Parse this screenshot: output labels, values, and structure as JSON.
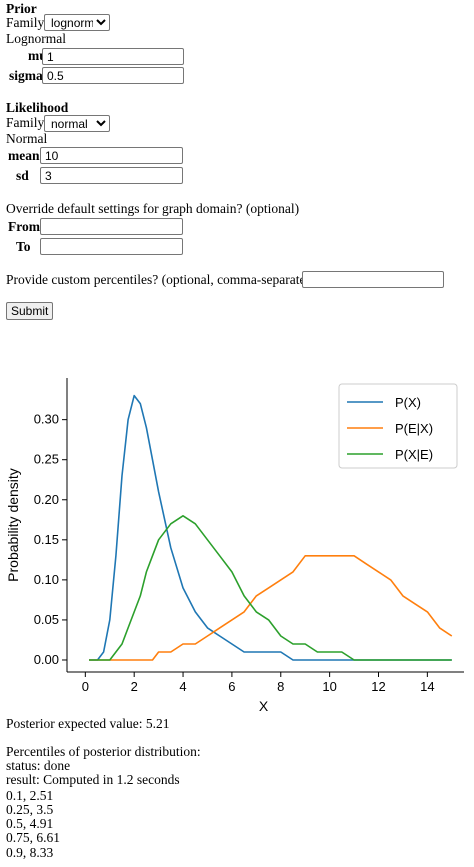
{
  "prior": {
    "heading": "Prior",
    "family_label": "Family",
    "family_value": "lognormal",
    "dist_name": "Lognormal",
    "param1_label": "mu",
    "param1_value": "1",
    "param2_label": "sigma",
    "param2_value": "0.5"
  },
  "likelihood": {
    "heading": "Likelihood",
    "family_label": "Family",
    "family_value": "normal",
    "dist_name": "Normal",
    "param1_label": "mean",
    "param1_value": "10",
    "param2_label": "sd",
    "param2_value": "3"
  },
  "domain": {
    "prompt": "Override default settings for graph domain? (optional)",
    "from_label": "From",
    "from_value": "",
    "to_label": "To",
    "to_value": ""
  },
  "percentiles_input": {
    "prompt": "Provide custom percentiles? (optional, comma-separated)",
    "value": ""
  },
  "submit_label": "Submit",
  "chart_data": {
    "type": "line",
    "xlabel": "X",
    "ylabel": "Probability density",
    "xlim": [
      -0.75,
      15.5
    ],
    "ylim": [
      -0.015,
      0.352
    ],
    "x_ticks": [
      "0",
      "2",
      "4",
      "6",
      "8",
      "10",
      "12",
      "14"
    ],
    "y_ticks": [
      "0.00",
      "0.05",
      "0.10",
      "0.15",
      "0.20",
      "0.25",
      "0.30"
    ],
    "legend_position": "top-right",
    "grid": false,
    "x": [
      0.15,
      0.3,
      0.5,
      0.75,
      1,
      1.25,
      1.5,
      1.75,
      2,
      2.25,
      2.5,
      2.75,
      3,
      3.5,
      4,
      4.5,
      5,
      5.5,
      6,
      6.5,
      7,
      7.5,
      8,
      8.5,
      9,
      9.5,
      10,
      10.5,
      11,
      11.5,
      12,
      12.5,
      13,
      13.5,
      14,
      14.5,
      15
    ],
    "series": [
      {
        "name": "P(X)",
        "color": "#1f77b4",
        "values": [
          0.0,
          0.0,
          0.0,
          0.01,
          0.05,
          0.13,
          0.23,
          0.3,
          0.33,
          0.32,
          0.29,
          0.25,
          0.21,
          0.14,
          0.09,
          0.06,
          0.04,
          0.03,
          0.02,
          0.01,
          0.01,
          0.01,
          0.01,
          0.0,
          0.0,
          0.0,
          0.0,
          0.0,
          0.0,
          0.0,
          0.0,
          0.0,
          0.0,
          0.0,
          0.0,
          0.0,
          0.0
        ]
      },
      {
        "name": "P(E|X)",
        "color": "#ff7f0e",
        "values": [
          0.0,
          0.0,
          0.0,
          0.0,
          0.0,
          0.0,
          0.0,
          0.0,
          0.0,
          0.0,
          0.0,
          0.0,
          0.01,
          0.01,
          0.02,
          0.02,
          0.03,
          0.04,
          0.05,
          0.06,
          0.08,
          0.09,
          0.1,
          0.11,
          0.13,
          0.13,
          0.13,
          0.13,
          0.13,
          0.12,
          0.11,
          0.1,
          0.08,
          0.07,
          0.06,
          0.04,
          0.03
        ]
      },
      {
        "name": "P(X|E)",
        "color": "#2ca02c",
        "values": [
          0.0,
          0.0,
          0.0,
          0.0,
          0.0,
          0.01,
          0.02,
          0.04,
          0.06,
          0.08,
          0.11,
          0.13,
          0.15,
          0.17,
          0.18,
          0.17,
          0.15,
          0.13,
          0.11,
          0.08,
          0.06,
          0.05,
          0.03,
          0.02,
          0.02,
          0.01,
          0.01,
          0.01,
          0.0,
          0.0,
          0.0,
          0.0,
          0.0,
          0.0,
          0.0,
          0.0,
          0.0
        ]
      }
    ]
  },
  "results": {
    "posterior_expected": "Posterior expected value: 5.21",
    "percentiles_heading": "Percentiles of posterior distribution:",
    "status": "status: done",
    "result": "result: Computed in 1.2 seconds",
    "percentiles": [
      "0.1, 2.51",
      "0.25, 3.5",
      "0.5, 4.91",
      "0.75, 6.61",
      "0.9, 8.33"
    ]
  }
}
